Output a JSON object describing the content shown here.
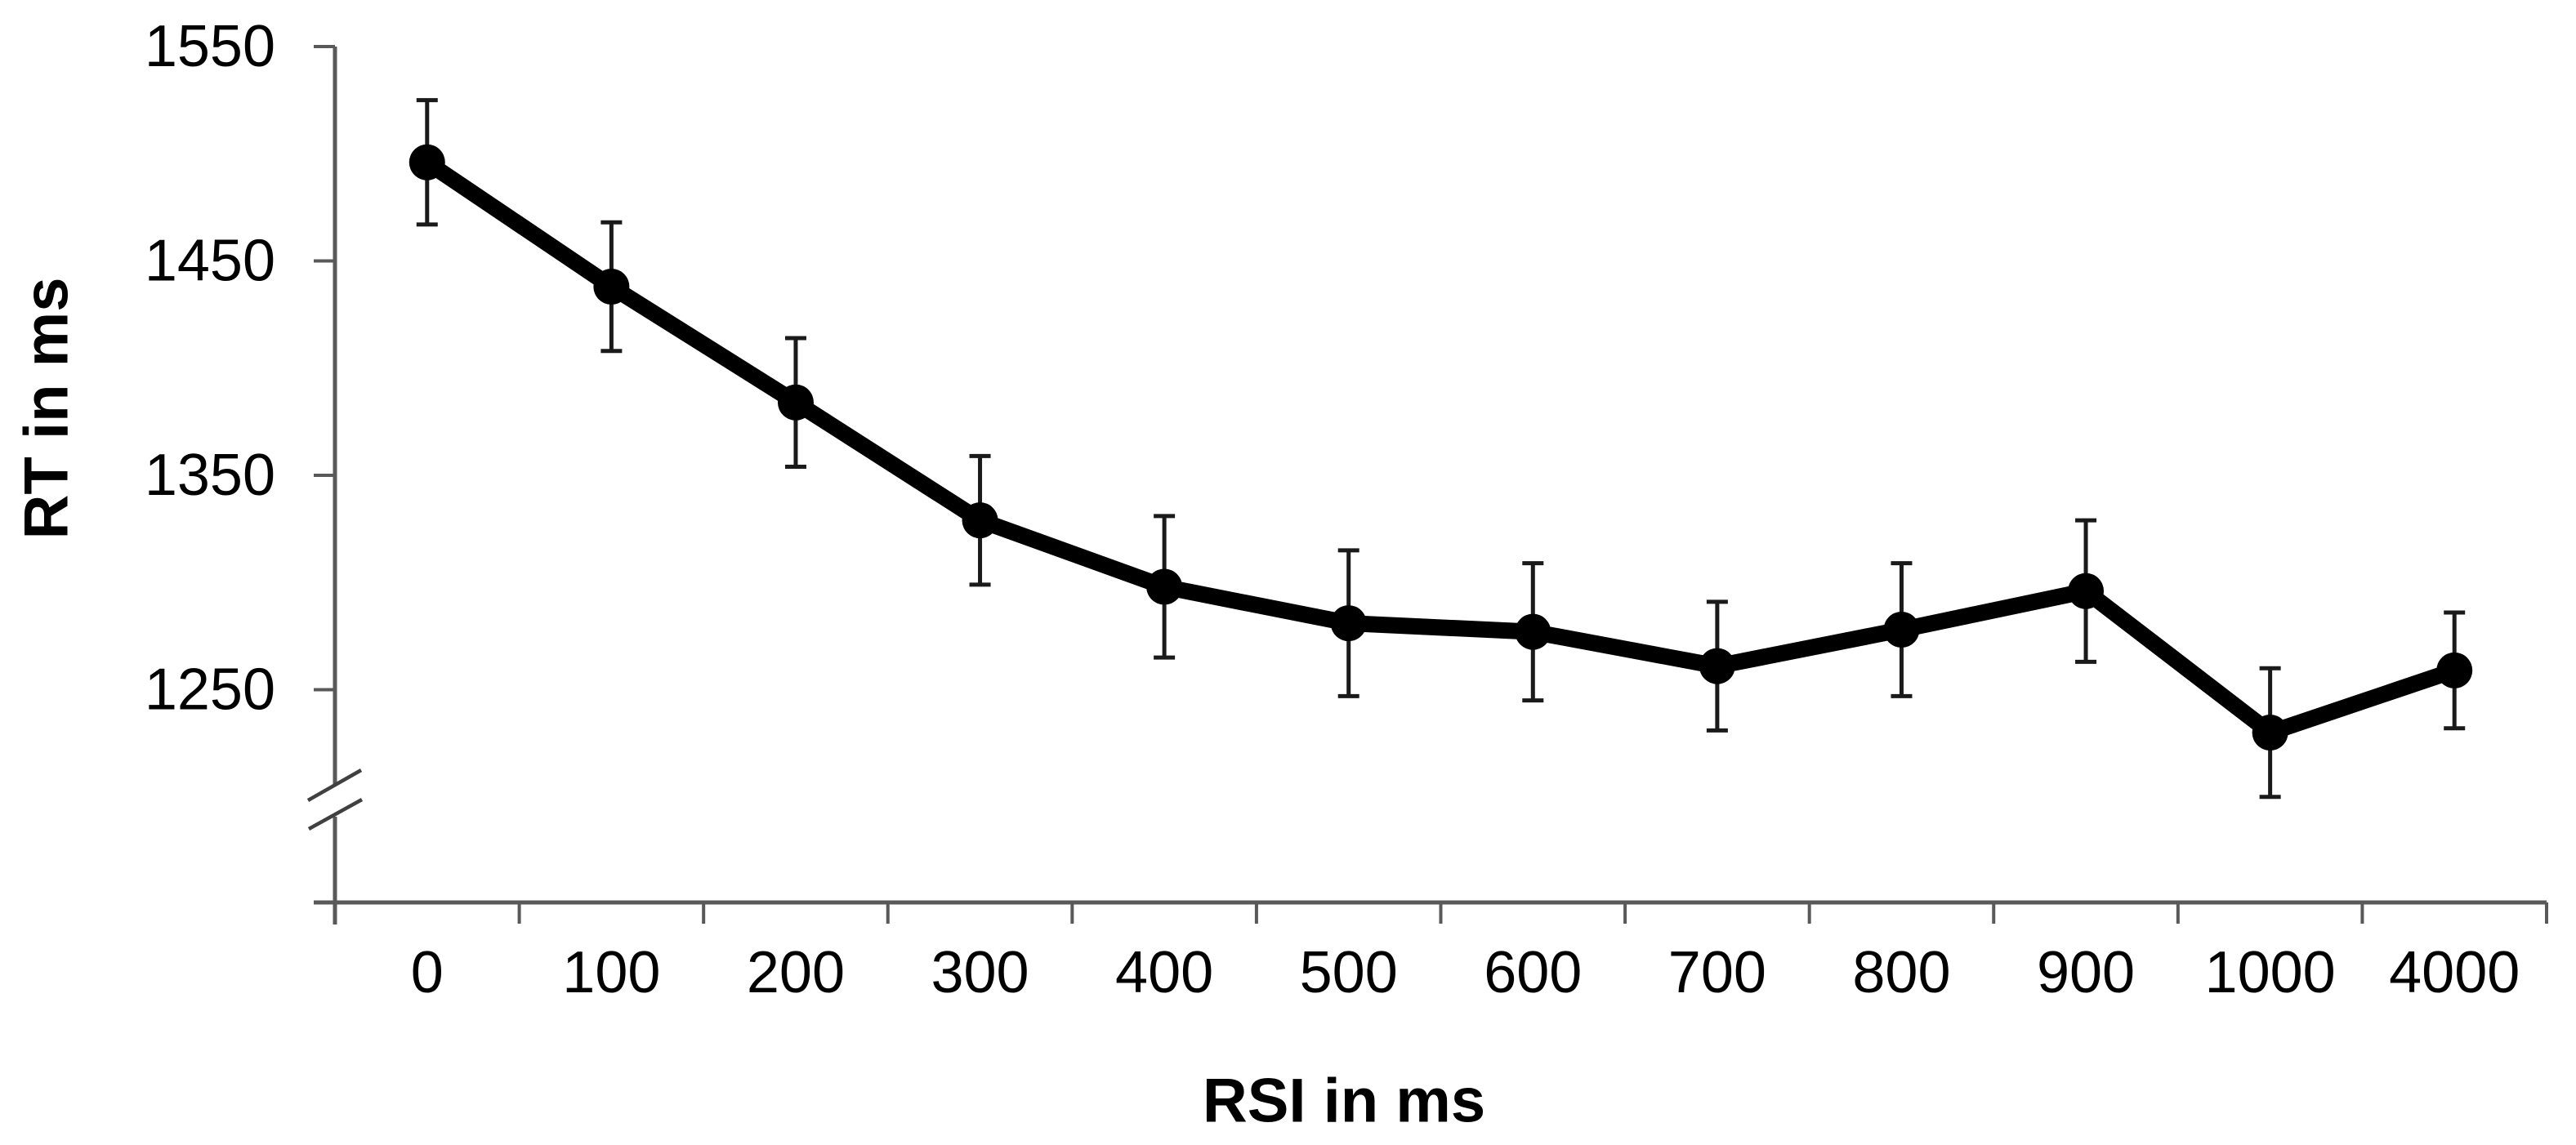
{
  "chart_data": {
    "type": "line",
    "title": "",
    "xlabel": "RSI in ms",
    "ylabel": "RT in ms",
    "categories": [
      "0",
      "100",
      "200",
      "300",
      "400",
      "500",
      "600",
      "700",
      "800",
      "900",
      "1000",
      "4000"
    ],
    "series": [
      {
        "name": "RT",
        "values": [
          1496,
          1438,
          1384,
          1329,
          1298,
          1281,
          1277,
          1261,
          1278,
          1296,
          1230,
          1259
        ],
        "errors": [
          29,
          30,
          30,
          30,
          33,
          34,
          32,
          30,
          31,
          33,
          30,
          27
        ]
      }
    ],
    "y_ticks": [
      1550,
      1450,
      1350,
      1250
    ],
    "ylim_shown": [
      1250,
      1550
    ],
    "y_axis_break": true,
    "grid": false,
    "legend": false,
    "marker": "filled-circle",
    "colors": {
      "line": "#000000",
      "marker": "#000000",
      "error_bar": "#1a1a1a",
      "axis": "#595959",
      "break_mark": "#404040",
      "text": "#000000",
      "background": "#ffffff"
    }
  }
}
